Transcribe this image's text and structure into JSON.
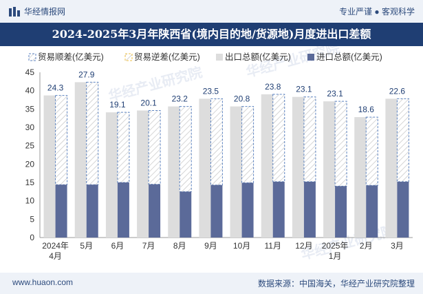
{
  "header": {
    "site_name": "华经情报网",
    "tagline": "专业严谨 ● 客观科学",
    "title": "2024-2025年3月年陕西省(境内目的地/货源地)月度进出口差额"
  },
  "footer": {
    "url": "www.huaon.com",
    "source": "数据来源：中国海关，华经产业研究院整理"
  },
  "watermark": {
    "text": "华经产业研究院",
    "url": "www.huaon.com"
  },
  "colors": {
    "export": "#dddddd",
    "import": "#5b6a99",
    "surplus_border": "#5b82c0",
    "deficit_border": "#f0c040"
  },
  "chart_data": {
    "type": "bar",
    "title": "2024-2025年3月年陕西省(境内目的地/货源地)月度进出口差额",
    "categories": [
      "2024年4月",
      "5月",
      "6月",
      "7月",
      "8月",
      "9月",
      "10月",
      "11月",
      "12月",
      "2025年1月",
      "2月",
      "3月"
    ],
    "ylim": [
      0,
      45
    ],
    "yticks": [
      0,
      5,
      10,
      15,
      20,
      25,
      30,
      35,
      40,
      45
    ],
    "legend": [
      {
        "key": "surplus",
        "label": "贸易顺差(亿美元)"
      },
      {
        "key": "deficit",
        "label": "贸易逆差(亿美元)"
      },
      {
        "key": "export",
        "label": "出口总额(亿美元)"
      },
      {
        "key": "import",
        "label": "进口总额(亿美元)"
      }
    ],
    "series": [
      {
        "name": "出口总额(亿美元)",
        "values": [
          38.7,
          42.3,
          34.1,
          34.6,
          35.7,
          37.8,
          35.7,
          39.0,
          38.3,
          37.1,
          32.8,
          37.8
        ]
      },
      {
        "name": "进口总额(亿美元)",
        "values": [
          14.4,
          14.4,
          15.0,
          14.5,
          12.5,
          14.3,
          14.9,
          15.2,
          15.2,
          14.0,
          14.2,
          15.2
        ]
      },
      {
        "name": "贸易顺差(亿美元)",
        "values": [
          24.3,
          27.9,
          19.1,
          20.1,
          23.2,
          23.5,
          20.8,
          23.8,
          23.1,
          23.1,
          18.6,
          22.6
        ]
      }
    ],
    "data_labels": [
      "24.3",
      "27.9",
      "19.1",
      "20.1",
      "23.2",
      "23.5",
      "20.8",
      "23.8",
      "23.1",
      "23.1",
      "18.6",
      "22.6"
    ]
  }
}
